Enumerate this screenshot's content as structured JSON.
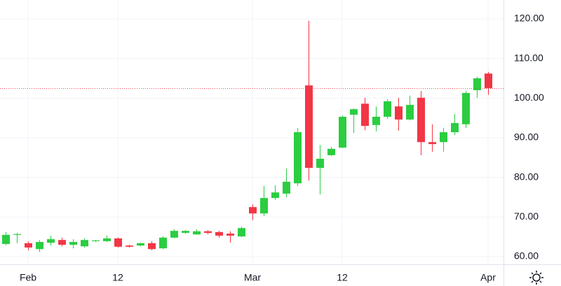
{
  "chart_data": {
    "type": "candlestick",
    "categories": [
      null,
      null,
      "Feb",
      null,
      null,
      null,
      null,
      null,
      null,
      null,
      "12",
      null,
      null,
      null,
      null,
      null,
      null,
      null,
      null,
      null,
      null,
      null,
      "Mar",
      null,
      null,
      null,
      null,
      null,
      null,
      null,
      "12",
      null,
      null,
      null,
      null,
      null,
      null,
      null,
      null,
      null,
      null,
      null,
      null,
      "Apr"
    ],
    "open": [
      63.2,
      65.5,
      63.4,
      61.9,
      63.5,
      64.2,
      63.0,
      62.6,
      63.9,
      63.9,
      64.6,
      62.8,
      62.8,
      63.4,
      62.1,
      64.8,
      66.0,
      65.6,
      66.4,
      66.2,
      65.8,
      65.1,
      72.5,
      70.9,
      74.8,
      75.9,
      78.5,
      103.2,
      82.4,
      85.6,
      87.5,
      95.8,
      98.6,
      93.2,
      95.3,
      97.9,
      94.6,
      100.1,
      88.9,
      88.9,
      91.4,
      93.4,
      102.0,
      106.2
    ],
    "high": [
      66.2,
      66.0,
      63.9,
      64.2,
      65.3,
      64.8,
      64.4,
      64.6,
      64.2,
      65.3,
      64.8,
      63.0,
      63.5,
      63.9,
      65.1,
      66.9,
      66.7,
      66.9,
      66.7,
      66.5,
      66.4,
      67.6,
      73.2,
      77.8,
      78.0,
      82.2,
      92.5,
      119.5,
      88.2,
      87.7,
      95.6,
      97.4,
      100.1,
      97.9,
      99.7,
      100.1,
      100.6,
      101.8,
      93.4,
      92.5,
      96.0,
      101.8,
      105.4,
      106.6
    ],
    "low": [
      62.9,
      63.4,
      61.6,
      61.2,
      62.8,
      62.6,
      62.1,
      62.3,
      63.7,
      63.7,
      62.3,
      62.3,
      62.6,
      61.6,
      61.9,
      64.6,
      65.8,
      65.5,
      65.6,
      64.8,
      63.5,
      64.9,
      69.2,
      70.2,
      74.3,
      75.0,
      77.8,
      79.2,
      75.7,
      85.4,
      87.4,
      91.2,
      91.9,
      91.6,
      94.8,
      91.8,
      94.4,
      85.6,
      86.5,
      86.5,
      90.7,
      92.5,
      100.1,
      100.8
    ],
    "close": [
      65.5,
      65.7,
      62.3,
      63.7,
      64.4,
      63.0,
      63.7,
      64.2,
      64.1,
      64.6,
      62.5,
      62.5,
      63.4,
      61.9,
      64.8,
      66.5,
      66.5,
      66.4,
      66.0,
      65.3,
      65.3,
      67.2,
      70.9,
      74.8,
      76.2,
      78.9,
      91.4,
      82.4,
      84.7,
      87.2,
      95.3,
      97.2,
      93.0,
      95.3,
      99.2,
      94.6,
      98.3,
      88.9,
      88.4,
      91.4,
      93.7,
      101.3,
      105.0,
      102.5
    ],
    "up_color": "#2bcd41",
    "down_color": "#f23645",
    "ylim": [
      58.06,
      124.76
    ],
    "yticks": [
      {
        "value": 60,
        "label": "60.00"
      },
      {
        "value": 70,
        "label": "70.00"
      },
      {
        "value": 80,
        "label": "80.00"
      },
      {
        "value": 90,
        "label": "90.00"
      },
      {
        "value": 100,
        "label": "100.00"
      },
      {
        "value": 110,
        "label": "110.00"
      },
      {
        "value": 120,
        "label": "120.00"
      }
    ],
    "grid": true
  }
}
